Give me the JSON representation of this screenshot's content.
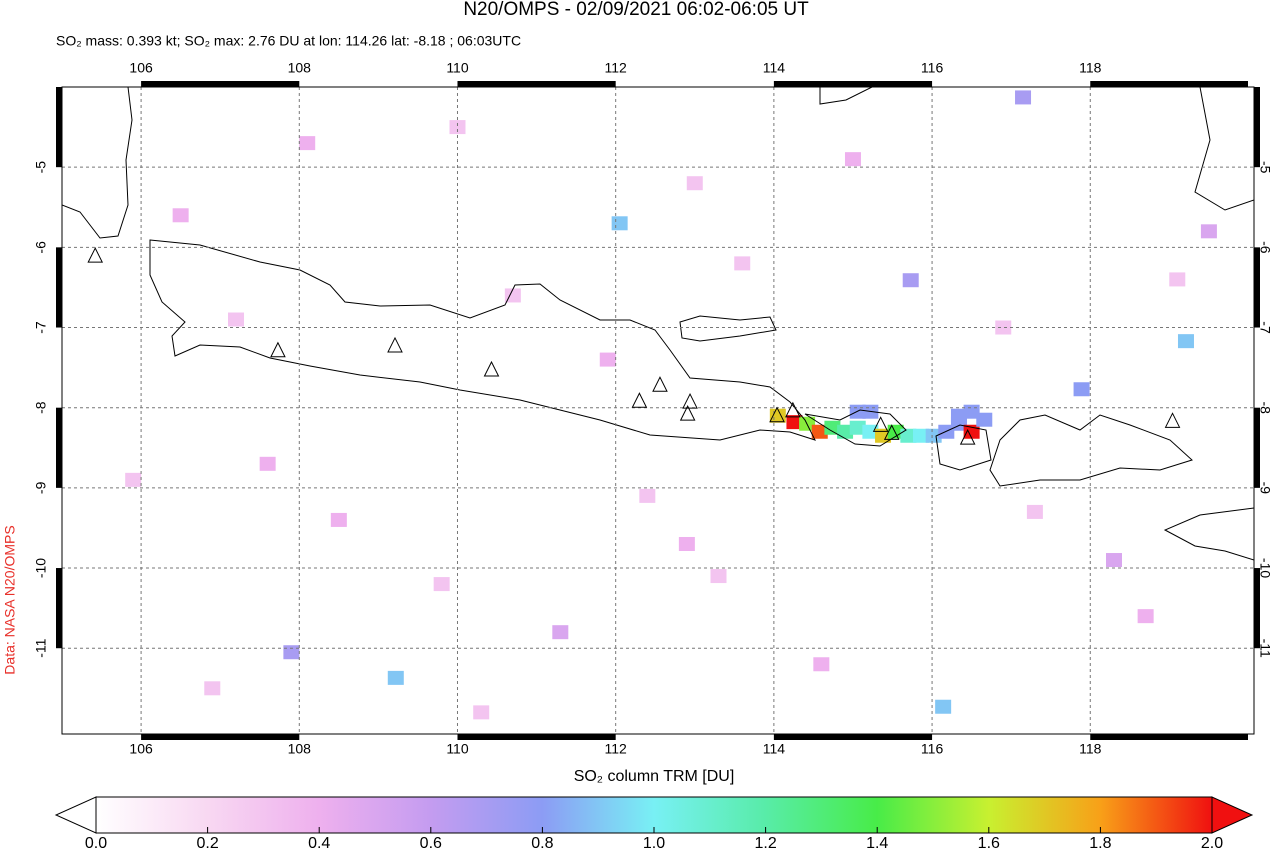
{
  "chart_data": {
    "type": "map",
    "title": "N20/OMPS - 02/09/2021 06:02-06:05 UT",
    "subtitle": "SO₂ mass: 0.393 kt; SO₂ max: 2.76 DU at lon: 114.26 lat: -8.18 ; 06:03UTC",
    "credit": "Data: NASA N20/OMPS",
    "colorbar_label": "SO₂ column TRM [DU]",
    "xlim": [
      105,
      120.07
    ],
    "ylim": [
      -12.07,
      -4
    ],
    "xticks": [
      106,
      108,
      110,
      112,
      114,
      116,
      118
    ],
    "yticks": [
      -5,
      -6,
      -7,
      -8,
      -9,
      -10,
      -11
    ],
    "grid": true,
    "clim": [
      0,
      2
    ],
    "cticks": [
      {
        "value": 0,
        "label": "0.0"
      },
      {
        "value": 0.2,
        "label": "0.2"
      },
      {
        "value": 0.4,
        "label": "0.4"
      },
      {
        "value": 0.6,
        "label": "0.6"
      },
      {
        "value": 0.8,
        "label": "0.8"
      },
      {
        "value": 1,
        "label": "1.0"
      },
      {
        "value": 1.2,
        "label": "1.2"
      },
      {
        "value": 1.4,
        "label": "1.4"
      },
      {
        "value": 1.6,
        "label": "1.6"
      },
      {
        "value": 1.8,
        "label": "1.8"
      },
      {
        "value": 2,
        "label": "2.0"
      }
    ],
    "colorscale": [
      "#ffffff",
      "#f8d8f2",
      "#eeb0ee",
      "#c49cf0",
      "#8c9cf4",
      "#78f0f4",
      "#58eca8",
      "#48ec48",
      "#c8f030",
      "#f8a018",
      "#f01010"
    ],
    "pixels": {
      "lon": [
        114.05,
        114.26,
        114.42,
        114.58,
        114.74,
        114.9,
        115.06,
        115.22,
        115.38,
        115.54,
        115.7,
        115.86,
        116.02,
        116.18,
        116.34,
        116.5,
        116.66,
        116.34,
        116.5,
        115.06,
        115.22,
        112.05,
        119.21,
        109.22,
        116.14,
        107.9,
        115.73,
        117.89,
        117.15,
        113.0,
        110.0,
        106.5,
        107.2,
        108.5,
        109.8,
        111.3,
        112.9,
        113.6,
        115.0,
        117.3,
        118.7,
        119.5,
        105.9,
        106.9,
        108.1,
        110.7,
        111.9,
        113.3,
        114.6,
        116.9,
        118.3,
        119.1,
        107.6,
        110.3,
        112.4
      ],
      "lat": [
        -8.1,
        -8.18,
        -8.2,
        -8.3,
        -8.25,
        -8.3,
        -8.25,
        -8.3,
        -8.35,
        -8.3,
        -8.35,
        -8.35,
        -8.35,
        -8.3,
        -8.2,
        -8.3,
        -8.15,
        -8.1,
        -8.05,
        -8.05,
        -8.05,
        -5.7,
        -7.17,
        -11.37,
        -11.73,
        -11.05,
        -6.41,
        -7.77,
        -4.13,
        -5.2,
        -4.5,
        -5.6,
        -6.9,
        -9.4,
        -10.2,
        -10.8,
        -9.7,
        -6.2,
        -4.9,
        -9.3,
        -10.6,
        -5.8,
        -8.9,
        -11.5,
        -4.7,
        -6.6,
        -7.4,
        -10.1,
        -11.2,
        -7.0,
        -9.9,
        -6.4,
        -8.7,
        -11.8,
        -9.1
      ],
      "so2": [
        1.7,
        2.76,
        1.5,
        1.9,
        1.3,
        1.2,
        1.1,
        1.0,
        1.7,
        1.4,
        1.1,
        1.0,
        0.9,
        0.8,
        0.8,
        2.2,
        0.8,
        0.8,
        0.8,
        0.8,
        0.8,
        0.9,
        0.9,
        0.9,
        0.9,
        0.7,
        0.7,
        0.8,
        0.7,
        0.3,
        0.3,
        0.4,
        0.3,
        0.4,
        0.3,
        0.5,
        0.4,
        0.3,
        0.4,
        0.3,
        0.4,
        0.5,
        0.3,
        0.3,
        0.4,
        0.3,
        0.4,
        0.3,
        0.4,
        0.3,
        0.5,
        0.3,
        0.4,
        0.3,
        0.3
      ]
    },
    "volcanoes": {
      "lon": [
        105.42,
        107.73,
        109.21,
        110.43,
        112.3,
        112.56,
        112.94,
        112.91,
        114.04,
        114.24,
        115.35,
        115.49,
        116.45,
        119.04
      ],
      "lat": [
        -6.11,
        -7.29,
        -7.23,
        -7.53,
        -7.92,
        -7.72,
        -7.93,
        -8.08,
        -8.1,
        -8.04,
        -8.22,
        -8.32,
        -8.38,
        -8.17
      ]
    }
  }
}
